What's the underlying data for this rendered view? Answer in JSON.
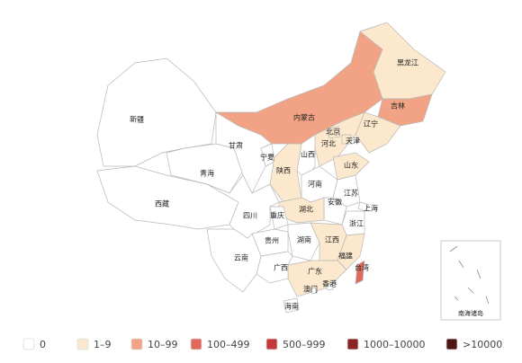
{
  "map": {
    "regions": [
      {
        "name": "新疆",
        "color": "#ffffff"
      },
      {
        "name": "西藏",
        "color": "#ffffff"
      },
      {
        "name": "青海",
        "color": "#ffffff"
      },
      {
        "name": "甘肃",
        "color": "#ffffff"
      },
      {
        "name": "内蒙古",
        "color": "#f2a385"
      },
      {
        "name": "黑龙江",
        "color": "#fbe8cd"
      },
      {
        "name": "吉林",
        "color": "#f2a385"
      },
      {
        "name": "辽宁",
        "color": "#fbe8cd"
      },
      {
        "name": "河北",
        "color": "#fbe8cd"
      },
      {
        "name": "北京",
        "color": "#fbe8cd"
      },
      {
        "name": "天津",
        "color": "#fbe8cd"
      },
      {
        "name": "山西",
        "color": "#ffffff"
      },
      {
        "name": "宁夏",
        "color": "#ffffff"
      },
      {
        "name": "陕西",
        "color": "#fbe8cd"
      },
      {
        "name": "山东",
        "color": "#fbe8cd"
      },
      {
        "name": "河南",
        "color": "#ffffff"
      },
      {
        "name": "江苏",
        "color": "#ffffff"
      },
      {
        "name": "安徽",
        "color": "#ffffff"
      },
      {
        "name": "上海",
        "color": "#ffffff"
      },
      {
        "name": "浙江",
        "color": "#ffffff"
      },
      {
        "name": "湖北",
        "color": "#fbe8cd"
      },
      {
        "name": "四川",
        "color": "#ffffff"
      },
      {
        "name": "重庆",
        "color": "#ffffff"
      },
      {
        "name": "贵州",
        "color": "#ffffff"
      },
      {
        "name": "湖南",
        "color": "#ffffff"
      },
      {
        "name": "江西",
        "color": "#fbe8cd"
      },
      {
        "name": "福建",
        "color": "#fbe8cd"
      },
      {
        "name": "广东",
        "color": "#fbe8cd"
      },
      {
        "name": "广西",
        "color": "#ffffff"
      },
      {
        "name": "云南",
        "color": "#ffffff"
      },
      {
        "name": "海南",
        "color": "#ffffff"
      },
      {
        "name": "台湾",
        "color": "#e0695a"
      },
      {
        "name": "香港",
        "color": "#ffffff"
      },
      {
        "name": "澳门",
        "color": "#ffffff"
      }
    ],
    "inset_label": "南海诸岛",
    "legend": [
      {
        "label": "0",
        "color": "#ffffff"
      },
      {
        "label": "1–9",
        "color": "#fbe8cd"
      },
      {
        "label": "10–99",
        "color": "#f2a385"
      },
      {
        "label": "100–499",
        "color": "#e0695a"
      },
      {
        "label": "500–999",
        "color": "#c53838"
      },
      {
        "label": "1000–10000",
        "color": "#8a2525"
      },
      {
        "label": ">10000",
        "color": "#4e1515"
      }
    ]
  }
}
